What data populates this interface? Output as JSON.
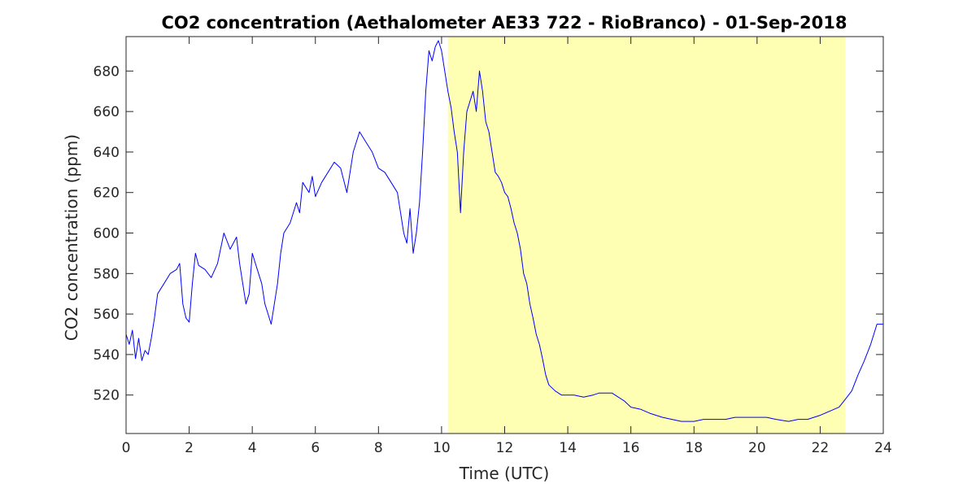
{
  "chart_data": {
    "type": "line",
    "title": "CO2 concentration (Aethalometer AE33 722 - RioBranco) - 01-Sep-2018",
    "xlabel": "Time (UTC)",
    "ylabel": "CO2 concentration (ppm)",
    "xlim": [
      0,
      24
    ],
    "ylim": [
      501,
      697
    ],
    "xticks": [
      0,
      2,
      4,
      6,
      8,
      10,
      12,
      14,
      16,
      18,
      20,
      22,
      24
    ],
    "yticks": [
      520,
      540,
      560,
      580,
      600,
      620,
      640,
      660,
      680
    ],
    "grid": false,
    "colors": {
      "line": "#0000ff",
      "daylight": "#ffffb3",
      "axes": "#262626"
    },
    "shaded_regions": [
      {
        "x_start": 10.2,
        "x_end": 22.8
      }
    ],
    "series": [
      {
        "x": [
          0,
          0.1,
          0.2,
          0.3,
          0.4,
          0.5,
          0.6,
          0.7,
          0.8,
          0.9,
          1.0,
          1.2,
          1.4,
          1.6,
          1.7,
          1.8,
          1.9,
          2.0,
          2.1,
          2.2,
          2.3,
          2.5,
          2.7,
          2.9,
          3.1,
          3.3,
          3.5,
          3.6,
          3.7,
          3.8,
          3.9,
          4.0,
          4.1,
          4.2,
          4.3,
          4.4,
          4.5,
          4.6,
          4.7,
          4.8,
          4.9,
          5.0,
          5.2,
          5.4,
          5.5,
          5.6,
          5.8,
          5.9,
          6.0,
          6.2,
          6.4,
          6.6,
          6.8,
          7.0,
          7.2,
          7.4,
          7.6,
          7.8,
          8.0,
          8.2,
          8.4,
          8.6,
          8.7,
          8.8,
          8.9,
          9.0,
          9.1,
          9.2,
          9.3,
          9.4,
          9.5,
          9.6,
          9.7,
          9.8,
          9.9,
          10.0,
          10.1,
          10.2,
          10.3,
          10.4,
          10.5,
          10.6,
          10.7,
          10.8,
          10.9,
          11.0,
          11.1,
          11.2,
          11.3,
          11.4,
          11.5,
          11.6,
          11.7,
          11.8,
          11.9,
          12.0,
          12.1,
          12.2,
          12.3,
          12.4,
          12.5,
          12.6,
          12.7,
          12.8,
          12.9,
          13.0,
          13.1,
          13.2,
          13.3,
          13.4,
          13.6,
          13.8,
          14.0,
          14.2,
          14.5,
          14.8,
          15.0,
          15.2,
          15.4,
          15.6,
          15.8,
          16.0,
          16.3,
          16.6,
          17.0,
          17.3,
          17.6,
          18.0,
          18.3,
          18.6,
          19.0,
          19.3,
          19.6,
          20.0,
          20.3,
          20.6,
          21.0,
          21.3,
          21.6,
          22.0,
          22.3,
          22.6,
          22.8,
          23.0,
          23.2,
          23.4,
          23.6,
          23.8,
          24.0
        ],
        "y": [
          550,
          545,
          552,
          538,
          548,
          537,
          542,
          540,
          548,
          558,
          570,
          575,
          580,
          582,
          585,
          565,
          558,
          556,
          575,
          590,
          584,
          582,
          578,
          585,
          600,
          592,
          598,
          585,
          575,
          565,
          570,
          590,
          585,
          580,
          575,
          565,
          560,
          555,
          565,
          575,
          590,
          600,
          605,
          615,
          610,
          625,
          620,
          628,
          618,
          625,
          630,
          635,
          632,
          620,
          640,
          650,
          645,
          640,
          632,
          630,
          625,
          620,
          610,
          600,
          595,
          612,
          590,
          600,
          615,
          640,
          670,
          690,
          685,
          692,
          695,
          690,
          680,
          670,
          662,
          650,
          640,
          610,
          640,
          660,
          665,
          670,
          660,
          680,
          670,
          655,
          650,
          640,
          630,
          628,
          625,
          620,
          618,
          612,
          605,
          600,
          592,
          580,
          575,
          565,
          558,
          550,
          545,
          538,
          530,
          525,
          522,
          520,
          520,
          520,
          519,
          520,
          521,
          521,
          521,
          519,
          517,
          514,
          513,
          511,
          509,
          508,
          507,
          507,
          508,
          508,
          508,
          509,
          509,
          509,
          509,
          508,
          507,
          508,
          508,
          510,
          512,
          514,
          518,
          522,
          530,
          537,
          545,
          555,
          555
        ]
      }
    ]
  }
}
